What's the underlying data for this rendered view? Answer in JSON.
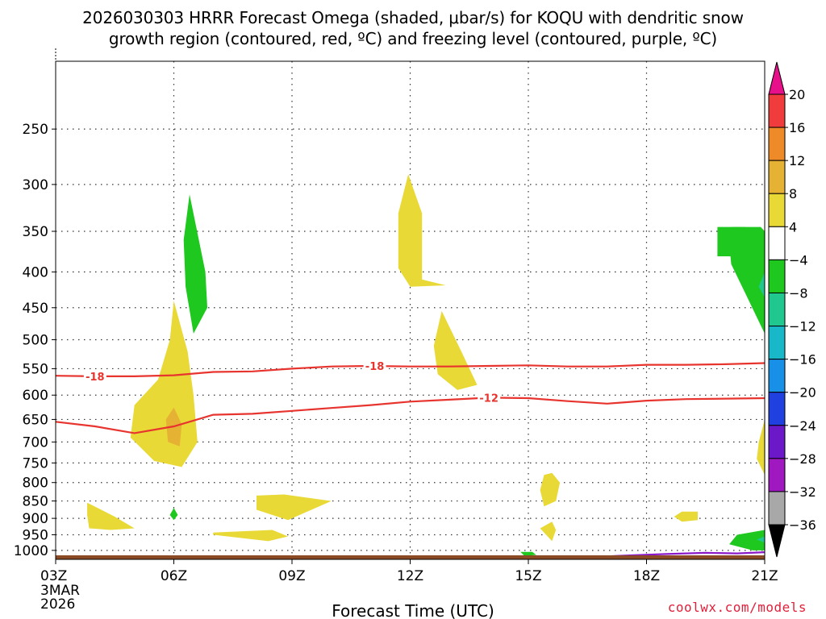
{
  "chart_data": {
    "type": "contour",
    "title_line1": "2026030303 HRRR Forecast Omega (shaded, μbar/s) for KOQU with dendritic snow",
    "title_line2": "growth region (contoured, red, ºC) and freezing level (contoured, purple, ºC)",
    "xlabel": "Forecast Time (UTC)",
    "credit": "coolwx.com/models",
    "x_ticks": [
      {
        "hour": 0,
        "label": "03Z",
        "sub": [
          "3MAR",
          "2026"
        ]
      },
      {
        "hour": 3,
        "label": "06Z"
      },
      {
        "hour": 6,
        "label": "09Z"
      },
      {
        "hour": 9,
        "label": "12Z"
      },
      {
        "hour": 12,
        "label": "15Z"
      },
      {
        "hour": 15,
        "label": "18Z"
      },
      {
        "hour": 18,
        "label": "21Z"
      }
    ],
    "x_range": [
      0,
      18
    ],
    "y_ticks": [
      250,
      300,
      350,
      400,
      450,
      500,
      550,
      600,
      650,
      700,
      750,
      800,
      850,
      900,
      950,
      1000
    ],
    "y_scale": "log-pressure",
    "y_range": [
      200,
      1030
    ],
    "grid": true,
    "colorbar": {
      "levels": [
        20,
        16,
        12,
        8,
        4,
        -4,
        -8,
        -12,
        -16,
        -20,
        -24,
        -28,
        -32,
        -36
      ],
      "colors": [
        "#e8108a",
        "#f03c3c",
        "#ef8a28",
        "#e6b234",
        "#e8d936",
        "#ffffff",
        "#1ec81e",
        "#20c890",
        "#18b8c8",
        "#1890e8",
        "#2040e0",
        "#6a18c8",
        "#a018c0",
        "#a8a8a8",
        "#000000"
      ]
    },
    "contours": [
      {
        "name": "-18",
        "color": "#e8342e",
        "x": [
          0,
          1,
          2,
          3,
          4,
          5,
          6,
          7,
          8,
          9,
          10,
          11,
          12,
          13,
          14,
          15,
          16,
          17,
          18
        ],
        "p": [
          563,
          564,
          564,
          562,
          556,
          555,
          550,
          546,
          545,
          546,
          546,
          545,
          544,
          546,
          546,
          543,
          543,
          542,
          540
        ],
        "labels": [
          {
            "x": 1.0,
            "text": "-18"
          },
          {
            "x": 8.1,
            "text": "-18"
          }
        ]
      },
      {
        "name": "-12",
        "color": "#e8342e",
        "x": [
          0,
          1,
          2,
          3,
          4,
          5,
          6,
          7,
          8,
          9,
          10,
          11,
          12,
          13,
          14,
          15,
          16,
          17,
          18
        ],
        "p": [
          655,
          665,
          680,
          665,
          640,
          638,
          632,
          626,
          620,
          613,
          609,
          605,
          606,
          612,
          617,
          611,
          608,
          607,
          606
        ],
        "labels": [
          {
            "x": 11.0,
            "text": "-12"
          }
        ]
      },
      {
        "name": "freezing",
        "color": "#8a18c8",
        "x": [
          13.6,
          14.5,
          15.5,
          16.5,
          17.3,
          18
        ],
        "p": [
          1022,
          1017,
          1012,
          1008,
          1010,
          1006
        ]
      }
    ],
    "regions": [
      {
        "value": 6,
        "points": [
          [
            3.0,
            440
          ],
          [
            3.35,
            520
          ],
          [
            3.5,
            600
          ],
          [
            3.6,
            700
          ],
          [
            3.2,
            760
          ],
          [
            2.5,
            745
          ],
          [
            1.9,
            690
          ],
          [
            2.0,
            620
          ],
          [
            2.6,
            570
          ],
          [
            2.9,
            500
          ]
        ]
      },
      {
        "value": 10,
        "points": [
          [
            3.0,
            625
          ],
          [
            3.2,
            660
          ],
          [
            3.15,
            710
          ],
          [
            2.85,
            700
          ],
          [
            2.8,
            650
          ]
        ]
      },
      {
        "value": -6,
        "points": [
          [
            3.4,
            310
          ],
          [
            3.8,
            400
          ],
          [
            3.85,
            450
          ],
          [
            3.5,
            490
          ],
          [
            3.3,
            420
          ],
          [
            3.25,
            360
          ]
        ]
      },
      {
        "value": 6,
        "points": [
          [
            8.95,
            290
          ],
          [
            9.3,
            330
          ],
          [
            9.3,
            410
          ],
          [
            9.9,
            418
          ],
          [
            9.0,
            420
          ],
          [
            8.7,
            395
          ],
          [
            8.7,
            330
          ]
        ]
      },
      {
        "value": 6,
        "points": [
          [
            9.8,
            455
          ],
          [
            10.3,
            520
          ],
          [
            10.7,
            580
          ],
          [
            10.2,
            590
          ],
          [
            9.7,
            560
          ],
          [
            9.6,
            510
          ]
        ]
      },
      {
        "value": 6,
        "points": [
          [
            0.8,
            855
          ],
          [
            1.5,
            895
          ],
          [
            2.0,
            930
          ],
          [
            1.4,
            935
          ],
          [
            0.85,
            930
          ],
          [
            0.8,
            890
          ]
        ]
      },
      {
        "value": -6,
        "points": [
          [
            3.0,
            870
          ],
          [
            3.1,
            890
          ],
          [
            3.0,
            905
          ],
          [
            2.9,
            890
          ]
        ]
      },
      {
        "value": 6,
        "points": [
          [
            5.1,
            835
          ],
          [
            5.8,
            832
          ],
          [
            7.0,
            850
          ],
          [
            5.9,
            905
          ],
          [
            5.1,
            875
          ]
        ]
      },
      {
        "value": 6,
        "points": [
          [
            4.0,
            943
          ],
          [
            5.5,
            935
          ],
          [
            5.9,
            955
          ],
          [
            5.4,
            970
          ],
          [
            4.0,
            950
          ]
        ]
      },
      {
        "value": 6,
        "points": [
          [
            12.6,
            775
          ],
          [
            12.8,
            800
          ],
          [
            12.7,
            850
          ],
          [
            12.4,
            865
          ],
          [
            12.3,
            820
          ],
          [
            12.4,
            780
          ]
        ]
      },
      {
        "value": 6,
        "points": [
          [
            12.6,
            910
          ],
          [
            12.7,
            935
          ],
          [
            12.6,
            970
          ],
          [
            12.3,
            930
          ]
        ]
      },
      {
        "value": 6,
        "points": [
          [
            15.9,
            880
          ],
          [
            16.3,
            880
          ],
          [
            16.3,
            905
          ],
          [
            15.9,
            910
          ],
          [
            15.7,
            895
          ]
        ]
      },
      {
        "value": -6,
        "points": [
          [
            11.8,
            1005
          ],
          [
            12.1,
            1005
          ],
          [
            12.2,
            1015
          ],
          [
            11.9,
            1018
          ]
        ]
      },
      {
        "value": -6,
        "points": [
          [
            17.9,
            345
          ],
          [
            18.0,
            350
          ],
          [
            18.0,
            490
          ],
          [
            17.6,
            440
          ],
          [
            17.15,
            390
          ],
          [
            17.1,
            365
          ],
          [
            17.15,
            345
          ]
        ]
      },
      {
        "value": -6,
        "points": [
          [
            16.8,
            345
          ],
          [
            17.5,
            345
          ],
          [
            17.5,
            380
          ],
          [
            16.8,
            380
          ]
        ]
      },
      {
        "value": -10,
        "points": [
          [
            18.0,
            400
          ],
          [
            18.0,
            435
          ],
          [
            17.85,
            420
          ]
        ]
      },
      {
        "value": -6,
        "points": [
          [
            18.0,
            935
          ],
          [
            18.0,
            1000
          ],
          [
            17.7,
            1000
          ],
          [
            17.1,
            980
          ],
          [
            17.3,
            950
          ]
        ]
      },
      {
        "value": -10,
        "points": [
          [
            18.0,
            955
          ],
          [
            18.0,
            975
          ],
          [
            17.8,
            965
          ]
        ]
      },
      {
        "value": 6,
        "points": [
          [
            18.0,
            650
          ],
          [
            18.0,
            780
          ],
          [
            17.8,
            740
          ],
          [
            17.85,
            700
          ]
        ]
      }
    ]
  }
}
